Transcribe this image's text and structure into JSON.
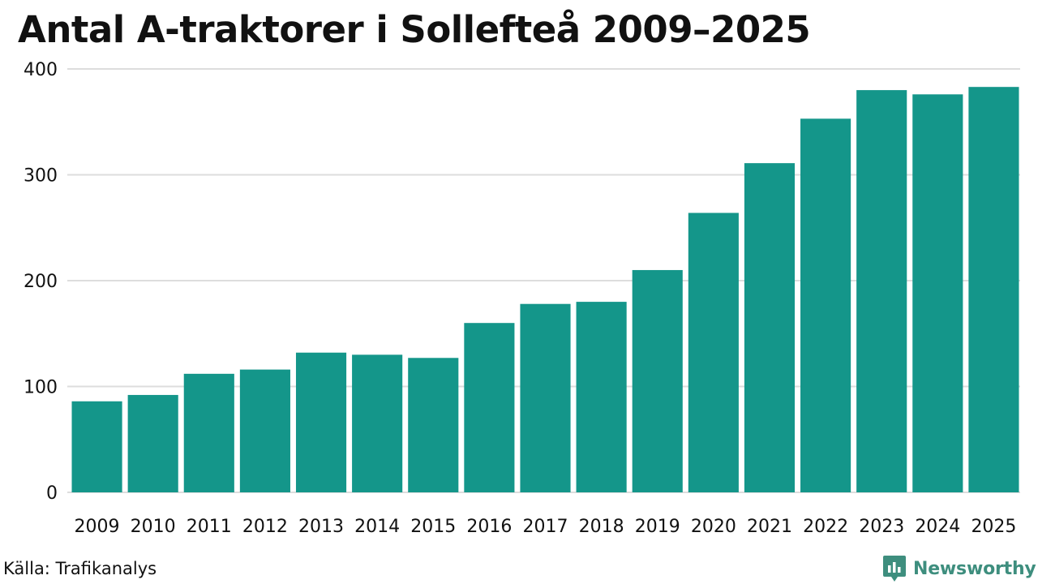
{
  "title": "Antal A-traktorer i Sollefteå 2009–2025",
  "source": "Källa: Trafikanalys",
  "brand": "Newsworthy",
  "colors": {
    "bar": "#14968A",
    "brand": "#3E8E7E",
    "grid": "#DDDDDD",
    "text": "#111111"
  },
  "chart_data": {
    "type": "bar",
    "title": "Antal A-traktorer i Sollefteå 2009–2025",
    "xlabel": "",
    "ylabel": "",
    "categories": [
      "2009",
      "2010",
      "2011",
      "2012",
      "2013",
      "2014",
      "2015",
      "2016",
      "2017",
      "2018",
      "2019",
      "2020",
      "2021",
      "2022",
      "2023",
      "2024",
      "2025"
    ],
    "values": [
      86,
      92,
      112,
      116,
      132,
      130,
      127,
      160,
      178,
      180,
      210,
      264,
      311,
      353,
      380,
      376,
      383
    ],
    "ylim": [
      0,
      400
    ],
    "yticks": [
      0,
      100,
      200,
      300,
      400
    ],
    "grid": true
  }
}
